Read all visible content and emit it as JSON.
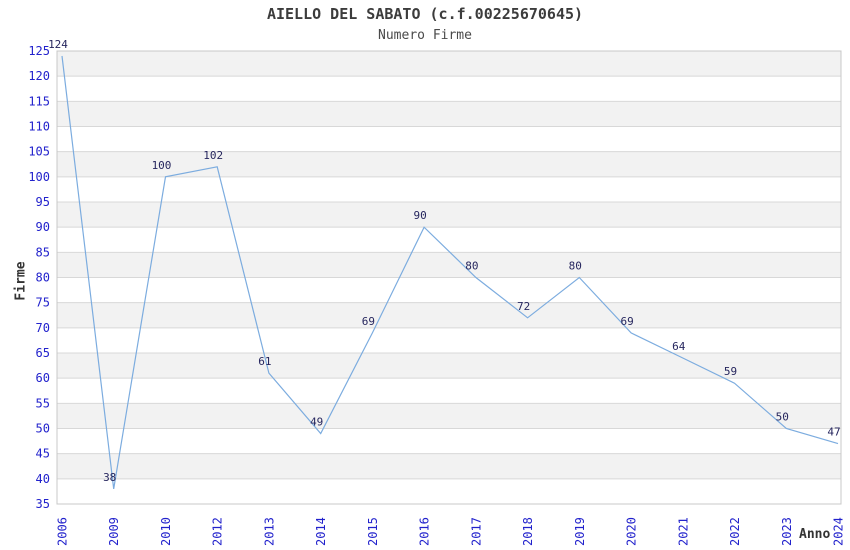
{
  "chart_data": {
    "type": "line",
    "title": "AIELLO DEL SABATO (c.f.00225670645)",
    "subtitle": "Numero Firme",
    "xlabel": "Anno",
    "ylabel": "Firme",
    "categories": [
      "2006",
      "2009",
      "2010",
      "2012",
      "2013",
      "2014",
      "2015",
      "2016",
      "2017",
      "2018",
      "2019",
      "2020",
      "2021",
      "2022",
      "2023",
      "2024"
    ],
    "values": [
      124,
      38,
      100,
      102,
      61,
      49,
      69,
      90,
      80,
      72,
      80,
      69,
      64,
      59,
      50,
      47
    ],
    "ylim": [
      35,
      125
    ],
    "ytick_step": 5,
    "grid": "horizontal-alternating-bands",
    "legend": "none",
    "colors": {
      "line": "#7cacdf",
      "tick_label": "#2222cc",
      "data_label": "#26265e",
      "title": "#3c3c3c",
      "subtitle": "#4a4a4a",
      "axis_label": "#333333",
      "band_gray": "#f2f2f2",
      "band_white": "#ffffff",
      "grid_line": "#d8d8d8",
      "plot_border": "#c8c8c8",
      "background": "#ffffff"
    }
  }
}
